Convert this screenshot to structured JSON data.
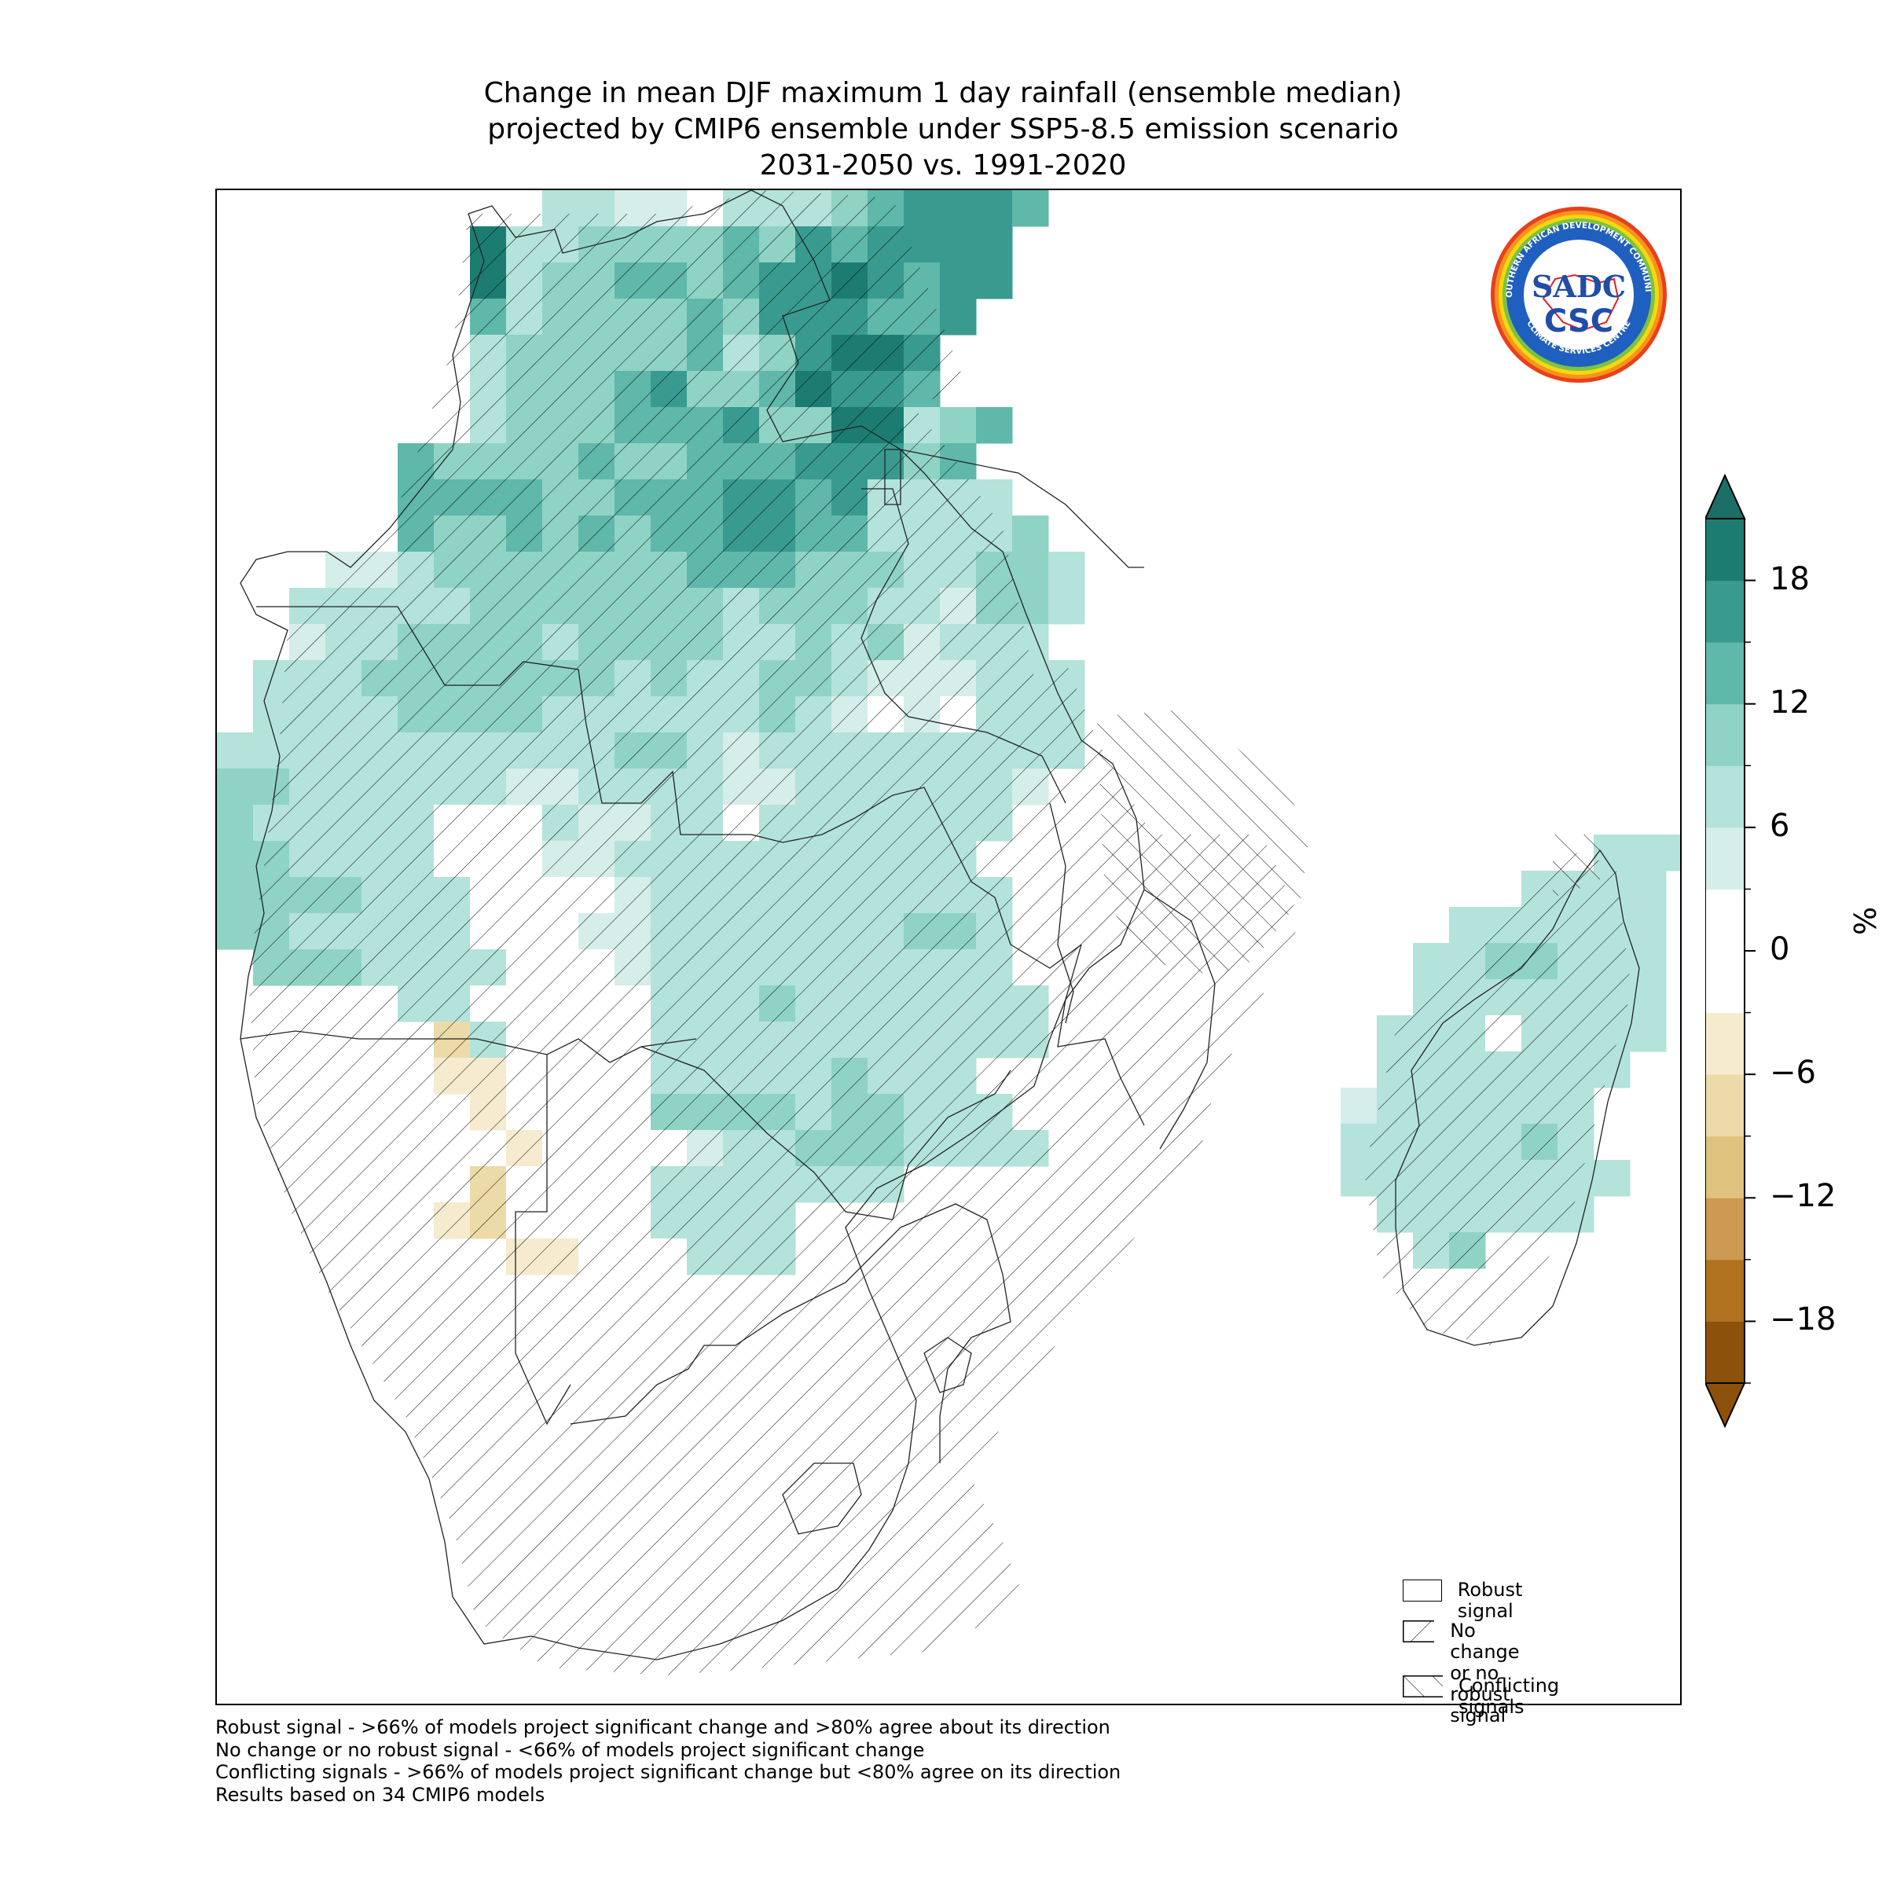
{
  "title": {
    "line1": "Change in mean DJF maximum 1 day rainfall (ensemble median)",
    "line2": "projected by CMIP6 ensemble under SSP5-8.5 emission scenario",
    "line3": "2031-2050 vs. 1991-2020"
  },
  "colorbar": {
    "unit": "%",
    "ticks": [
      "18",
      "12",
      "6",
      "0",
      "−6",
      "−12",
      "−18"
    ],
    "tick_values": [
      18,
      12,
      6,
      0,
      -6,
      -12,
      -18
    ],
    "range": [
      -21,
      21
    ],
    "extend": "both",
    "bins": [
      {
        "from": -21,
        "to": -18,
        "color": "#8c510a"
      },
      {
        "from": -18,
        "to": -15,
        "color": "#b0721f"
      },
      {
        "from": -15,
        "to": -12,
        "color": "#cc9a52"
      },
      {
        "from": -12,
        "to": -9,
        "color": "#dfc27d"
      },
      {
        "from": -9,
        "to": -6,
        "color": "#ecdba8"
      },
      {
        "from": -6,
        "to": -3,
        "color": "#f6ebcf"
      },
      {
        "from": -3,
        "to": 3,
        "color": "#ffffff"
      },
      {
        "from": 3,
        "to": 6,
        "color": "#d5eeea"
      },
      {
        "from": 6,
        "to": 9,
        "color": "#b3e3da"
      },
      {
        "from": 9,
        "to": 12,
        "color": "#8fd3c5"
      },
      {
        "from": 12,
        "to": 15,
        "color": "#5fb8aa"
      },
      {
        "from": 15,
        "to": 18,
        "color": "#399b8f"
      },
      {
        "from": 18,
        "to": 21,
        "color": "#1d7c72"
      }
    ],
    "extend_low_color": "#8c510a",
    "extend_high_color": "#1b6f66"
  },
  "legend": {
    "items": [
      {
        "label": "Robust signal",
        "pattern": "none"
      },
      {
        "label": "No change\nor no robust signal",
        "pattern": "forward-hatch"
      },
      {
        "label": "Conflicting signals",
        "pattern": "back-hatch"
      }
    ]
  },
  "footnotes": [
    "Robust signal - >66% of models project significant change and >80% agree about its direction",
    "No change or no robust signal - <66% of models project significant change",
    "Conflicting signals - >66% of models project significant change but <80% agree on its direction",
    "Results based on 34 CMIP6 models"
  ],
  "logo": {
    "text_main": "SADC",
    "text_sub": "CSC",
    "ring_top": "SOUTHERN AFRICAN DEVELOPMENT COMMUNITY",
    "ring_bottom": "CLIMATE SERVICES CENTRE"
  },
  "map": {
    "grid_legend": "0 = white; 1..6 = 3-6,6-9,9-12,12-15,15-18,18-21 %; a..d = -3..-6,-6..-9,-9..-12,-12..-15 %",
    "rows": [
      "...2211.222345554..",
      "..622333343545555..",
      "..623344345565455..",
      "..42333343555445...",
      "..2333334235665...",
      "..2333453346554..",
      "..233344453366234...",
      ".4333343344455534..",
      ".44443344455452222.",
      ".433434344554422223..",
      "112333333344433322332",
      "2222233333332333221332",
      "122333323333223231222",
      "22233333332322332111222",
      "22223333222222321010222",
      "222222222223321222222222",
      "33222222112222112222221",
      "32222200.2112202222222",
      "332222000112222222222",
      "3333222000012222222222",
      "3322222000112222222332",
      ".333222200012222222222",
      ".....220000022232222222",
      "......b2000022222222222",
      "......aa0000222223222",
      ".......a00003333233222",
      "........a00001223332222",
      ".......b00002222222",
      "......ab00002222",
      "........aa000222"
    ]
  }
}
